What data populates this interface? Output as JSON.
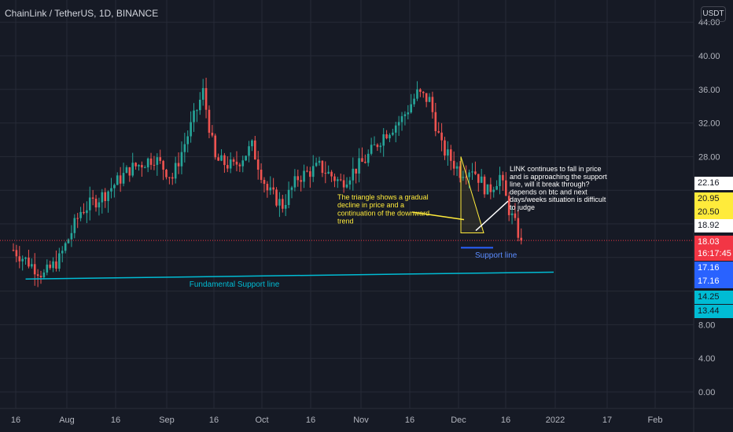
{
  "header": {
    "title": "ChainLink / TetherUS, 1D, BINANCE",
    "currency_label": "USDT"
  },
  "price_axis": {
    "ticks": [
      "44.00",
      "40.00",
      "36.00",
      "32.00",
      "28.00",
      "8.00",
      "4.00",
      "0.00"
    ],
    "badges": [
      {
        "text": "22.16",
        "bg": "#ffffff",
        "fg": "#131722"
      },
      {
        "text": "20.95",
        "bg": "#ffeb3b",
        "fg": "#131722"
      },
      {
        "text": "20.50",
        "bg": "#ffeb3b",
        "fg": "#131722"
      },
      {
        "text": "18.92",
        "bg": "#ffffff",
        "fg": "#131722"
      },
      {
        "text": "18.03",
        "bg": "#f23645",
        "fg": "#ffffff"
      },
      {
        "text": "16:17:45",
        "bg": "#f23645",
        "fg": "#ffffff"
      },
      {
        "text": "17.16",
        "bg": "#2962ff",
        "fg": "#ffffff"
      },
      {
        "text": "17.16",
        "bg": "#2962ff",
        "fg": "#ffffff"
      },
      {
        "text": "14.25",
        "bg": "#00bcd4",
        "fg": "#131722"
      },
      {
        "text": "13.44",
        "bg": "#00bcd4",
        "fg": "#131722"
      }
    ]
  },
  "time_axis": {
    "labels": [
      "16",
      "Aug",
      "16",
      "Sep",
      "16",
      "Oct",
      "16",
      "Nov",
      "16",
      "Dec",
      "16",
      "2022",
      "17",
      "Feb"
    ]
  },
  "annotations": {
    "triangle_note": "The triangle shows a gradual decline in price and a continuation of the downward trend",
    "link_note": "LINK continues to fall in price and is approaching the support line, will it break through? depends on btc and next days/weeks situation is difficult to judge",
    "support_label": "Support line",
    "fundamental_label": "Fundamental Support line"
  },
  "chart_data": {
    "type": "candlestick",
    "symbol": "ChainLink / TetherUS",
    "interval": "1D",
    "exchange": "BINANCE",
    "current_price": 18.03,
    "countdown": "16:17:45",
    "y_ticks": [
      44,
      40,
      36,
      32,
      28,
      8,
      4,
      0
    ],
    "x_labels": [
      "16",
      "Aug",
      "16",
      "Sep",
      "16",
      "Oct",
      "16",
      "Nov",
      "16",
      "Dec",
      "16",
      "2022",
      "17",
      "Feb"
    ],
    "colors": {
      "up": "#26a69a",
      "down": "#ef5350",
      "yellow": "#ffeb3b",
      "cyan": "#00bcd4",
      "blue": "#2962ff"
    },
    "close_path": [
      {
        "day": 0,
        "close": 16.9
      },
      {
        "day": 10,
        "close": 13.9
      },
      {
        "day": 15,
        "close": 15.8
      },
      {
        "day": 22,
        "close": 21.5
      },
      {
        "day": 30,
        "close": 23.6
      },
      {
        "day": 38,
        "close": 26.5
      },
      {
        "day": 46,
        "close": 27.9
      },
      {
        "day": 52,
        "close": 25.5
      },
      {
        "day": 59,
        "close": 32.6
      },
      {
        "day": 62,
        "close": 35.7
      },
      {
        "day": 66,
        "close": 27.6
      },
      {
        "day": 72,
        "close": 26.8
      },
      {
        "day": 78,
        "close": 29.2
      },
      {
        "day": 83,
        "close": 24.0
      },
      {
        "day": 88,
        "close": 22.2
      },
      {
        "day": 93,
        "close": 25.5
      },
      {
        "day": 100,
        "close": 26.8
      },
      {
        "day": 107,
        "close": 24.9
      },
      {
        "day": 115,
        "close": 27.6
      },
      {
        "day": 121,
        "close": 30.6
      },
      {
        "day": 127,
        "close": 32.5
      },
      {
        "day": 132,
        "close": 35.5
      },
      {
        "day": 136,
        "close": 34.7
      },
      {
        "day": 140,
        "close": 29.1
      },
      {
        "day": 146,
        "close": 26.2
      },
      {
        "day": 150,
        "close": 26.7
      },
      {
        "day": 155,
        "close": 23.8
      },
      {
        "day": 159,
        "close": 25.7
      },
      {
        "day": 162,
        "close": 21.7
      },
      {
        "day": 166,
        "close": 18.0
      }
    ]
  }
}
